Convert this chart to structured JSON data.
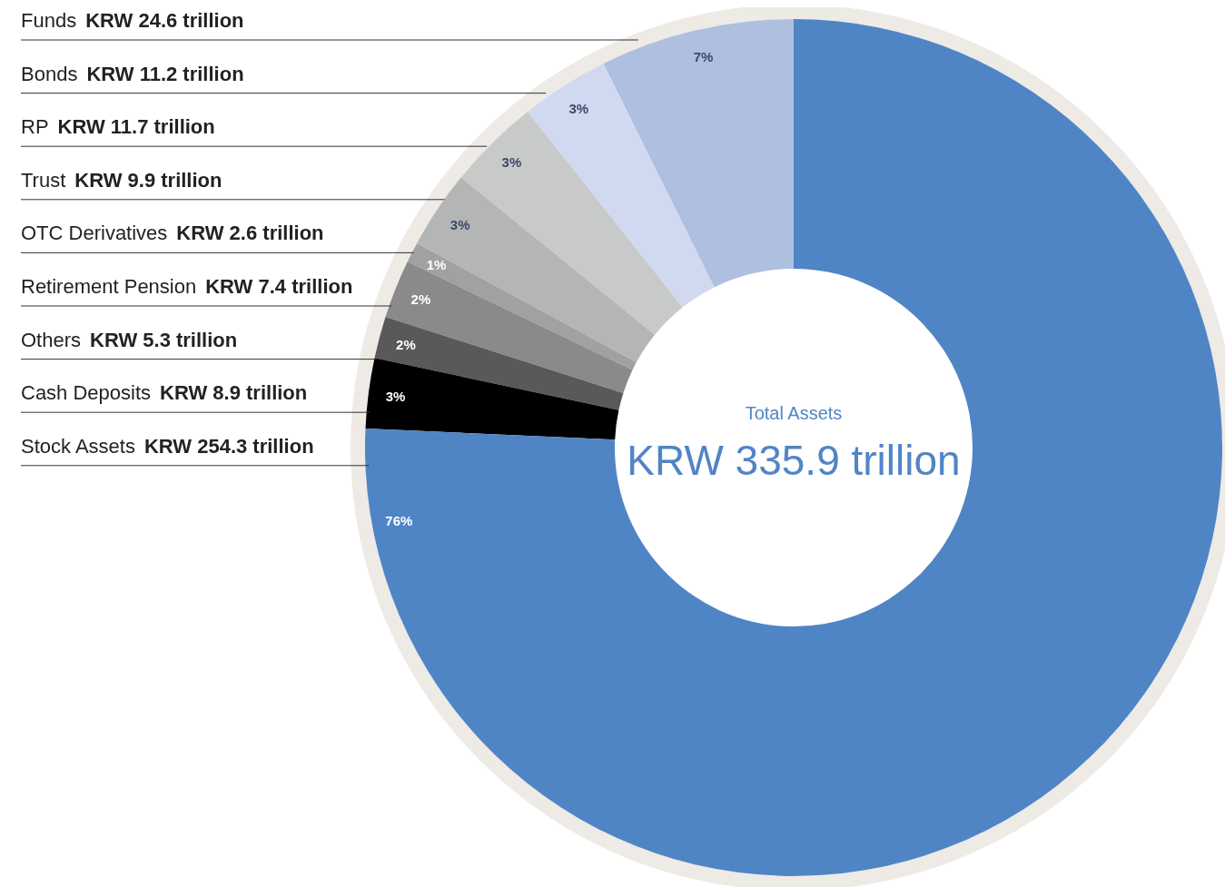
{
  "chart_data": {
    "type": "donut",
    "title": "Total Assets",
    "subtitle": "KRW 335.9 trillion",
    "categories": [
      "Funds",
      "Bonds",
      "RP",
      "Trust",
      "OTC Derivatives",
      "Retirement Pension",
      "Others",
      "Cash Deposits",
      "Stock Assets"
    ],
    "values": [
      24.6,
      11.2,
      11.7,
      9.9,
      2.6,
      7.4,
      5.3,
      8.9,
      254.3
    ],
    "value_labels": [
      "KRW 24.6 trillion",
      "KRW 11.2 trillion",
      "KRW 11.7 trillion",
      "KRW 9.9 trillion",
      "KRW 2.6 trillion",
      "KRW 7.4 trillion",
      "KRW 5.3 trillion",
      "KRW 8.9 trillion",
      "KRW 254.3 trillion"
    ],
    "colors": [
      "#aebfe0",
      "#d0d9f0",
      "#c8c9c9",
      "#b4b5b5",
      "#a0a1a1",
      "#8a8a8a",
      "#5a5858",
      "#000000",
      "#5085c5"
    ],
    "annotations": [
      {
        "text": "7%",
        "x": "Funds"
      },
      {
        "text": "3%",
        "x": "Bonds"
      },
      {
        "text": "3%",
        "x": "RP"
      },
      {
        "text": "3%",
        "x": "Trust"
      },
      {
        "text": "1%",
        "x": "OTC Derivatives"
      },
      {
        "text": "2%",
        "x": "Retirement Pension"
      },
      {
        "text": "2%",
        "x": "Others"
      },
      {
        "text": "3%",
        "x": "Cash Deposits"
      },
      {
        "text": "76%",
        "x": "Stock Assets"
      }
    ]
  }
}
